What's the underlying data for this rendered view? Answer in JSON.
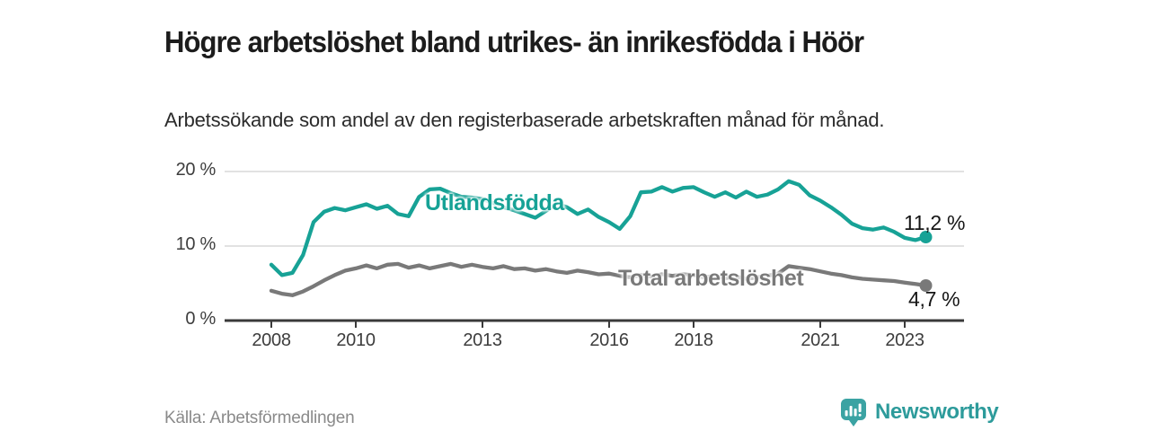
{
  "header": {
    "title": "Högre arbetslöshet bland utrikes- än inrikesfödda i Höör",
    "subtitle": "Arbetssökande som andel av den registerbaserade arbetskraften månad för månad."
  },
  "footer": {
    "source": "Källa: Arbetsförmedlingen",
    "brand_name": "Newsworthy",
    "brand_text_color": "#2d9b9b",
    "brand_icon_color": "#3ba3a3"
  },
  "chart_data": {
    "type": "line",
    "title": "Högre arbetslöshet bland utrikes- än inrikesfödda i Höör",
    "subtitle": "Arbetssökande som andel av den registerbaserade arbetskraften månad för månad.",
    "source": "Källa: Arbetsförmedlingen",
    "unit": "%",
    "grid": true,
    "legend_position": "inline-labels-on-lines",
    "x_axis": {
      "tick_years": [
        2008,
        2010,
        2013,
        2016,
        2018,
        2021,
        2023
      ],
      "tick_labels": [
        "2008",
        "2010",
        "2013",
        "2016",
        "2018",
        "2021",
        "2023"
      ]
    },
    "y_axis": {
      "tick_values": [
        0,
        10,
        20
      ],
      "tick_labels": [
        "0 %",
        "10 %",
        "20 %"
      ],
      "range": [
        0,
        21
      ]
    },
    "x_start_year": 2008,
    "x_step_years": 0.25,
    "axis_color": "#3a3a3a",
    "grid_color": "#d9d9d9",
    "series": [
      {
        "name": "Utlandsfödda",
        "color": "#17a296",
        "end_value_label": "11,2 %",
        "end_value": 11.2,
        "values": [
          7.5,
          6.1,
          6.4,
          8.8,
          13.2,
          14.6,
          15.1,
          14.8,
          15.2,
          15.6,
          15.0,
          15.4,
          14.3,
          14.0,
          16.6,
          17.6,
          17.7,
          17.1,
          16.6,
          16.5,
          16.3,
          15.8,
          15.2,
          14.8,
          14.3,
          13.8,
          14.7,
          15.7,
          15.2,
          14.3,
          14.9,
          13.9,
          13.2,
          12.3,
          14.0,
          17.2,
          17.3,
          17.9,
          17.3,
          17.8,
          17.9,
          17.2,
          16.6,
          17.2,
          16.5,
          17.3,
          16.6,
          16.9,
          17.6,
          18.7,
          18.2,
          16.8,
          16.1,
          15.2,
          14.2,
          13.0,
          12.4,
          12.2,
          12.5,
          11.9,
          11.1,
          10.8,
          11.2
        ]
      },
      {
        "name": "Total arbetslöshet",
        "color": "#797979",
        "end_value_label": "4,7 %",
        "end_value": 4.7,
        "values": [
          4.0,
          3.6,
          3.4,
          3.9,
          4.6,
          5.4,
          6.1,
          6.7,
          7.0,
          7.4,
          7.0,
          7.5,
          7.6,
          7.1,
          7.4,
          7.0,
          7.3,
          7.6,
          7.2,
          7.5,
          7.2,
          7.0,
          7.3,
          6.9,
          7.0,
          6.7,
          6.9,
          6.6,
          6.4,
          6.7,
          6.5,
          6.2,
          6.3,
          6.0,
          5.8,
          6.1,
          5.9,
          6.2,
          6.0,
          6.2,
          6.1,
          5.8,
          6.0,
          5.7,
          5.9,
          5.6,
          5.8,
          6.0,
          6.3,
          7.3,
          7.1,
          6.9,
          6.6,
          6.3,
          6.1,
          5.8,
          5.6,
          5.5,
          5.4,
          5.3,
          5.1,
          4.9,
          4.7
        ]
      }
    ]
  }
}
